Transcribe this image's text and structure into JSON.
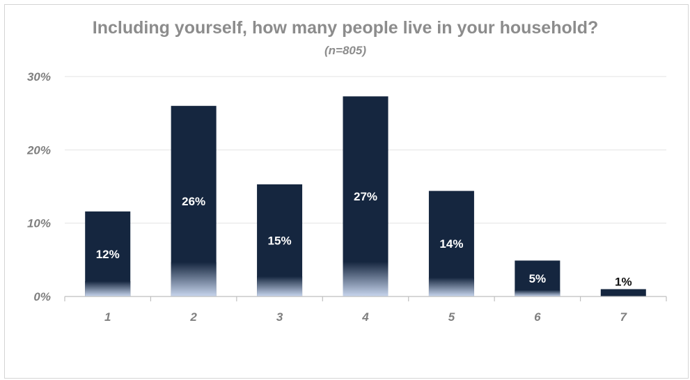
{
  "chart_data": {
    "type": "bar",
    "title": "Including yourself, how many people live in your household?",
    "subtitle": "(n=805)",
    "xlabel": "",
    "ylabel": "",
    "categories": [
      "1",
      "2",
      "3",
      "4",
      "5",
      "6",
      "7"
    ],
    "values": [
      11.6,
      26.0,
      15.3,
      27.3,
      14.4,
      4.9,
      1.0
    ],
    "data_labels": [
      "12%",
      "26%",
      "15%",
      "27%",
      "14%",
      "5%",
      "1%"
    ],
    "ylim": [
      0,
      30
    ],
    "yticks": [
      0,
      10,
      20,
      30
    ],
    "ytick_labels": [
      "0%",
      "10%",
      "20%",
      "30%"
    ],
    "grid": true,
    "legend": "none",
    "colors": {
      "bar": "#15263f",
      "bar_fade": "#c8d6ee",
      "label_inside": "#ffffff",
      "label_outside": "#111111",
      "grid": "#e3e3e3",
      "axis": "#bfbfbf"
    }
  }
}
